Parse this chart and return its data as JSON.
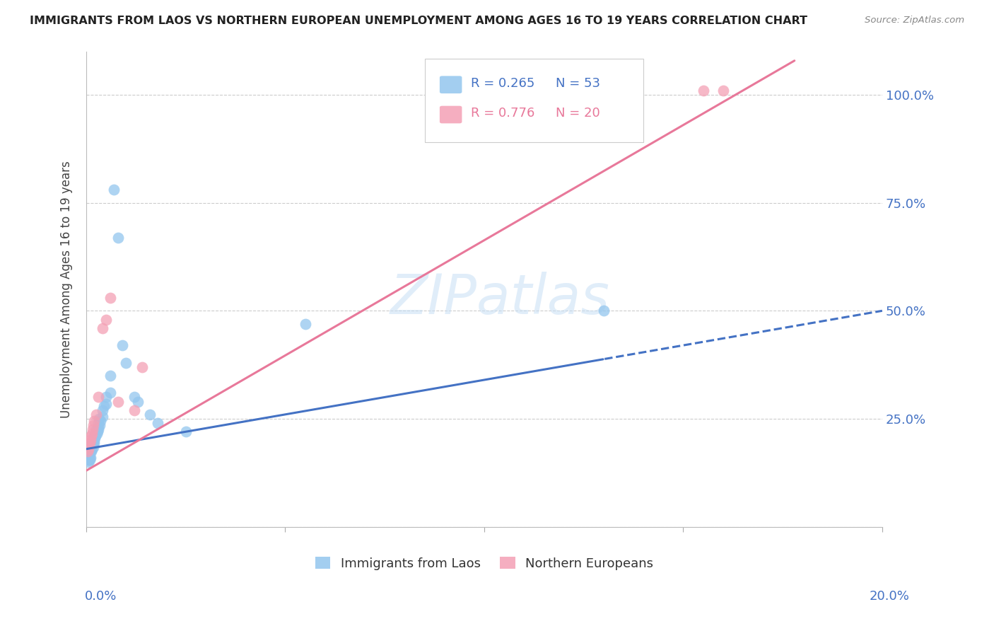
{
  "title": "IMMIGRANTS FROM LAOS VS NORTHERN EUROPEAN UNEMPLOYMENT AMONG AGES 16 TO 19 YEARS CORRELATION CHART",
  "source": "Source: ZipAtlas.com",
  "ylabel": "Unemployment Among Ages 16 to 19 years",
  "r_laos": 0.265,
  "n_laos": 53,
  "r_northern": 0.776,
  "n_northern": 20,
  "color_laos": "#93C6EE",
  "color_northern": "#F4A0B5",
  "color_laos_line": "#4472C4",
  "color_northern_line": "#E8789A",
  "watermark": "ZIPatlas",
  "laos_x": [
    0.0003,
    0.0004,
    0.0005,
    0.0005,
    0.0006,
    0.0006,
    0.0007,
    0.0007,
    0.0008,
    0.0009,
    0.001,
    0.001,
    0.001,
    0.0012,
    0.0013,
    0.0013,
    0.0014,
    0.0015,
    0.0016,
    0.0017,
    0.0018,
    0.002,
    0.002,
    0.002,
    0.0022,
    0.0023,
    0.0025,
    0.0026,
    0.0028,
    0.003,
    0.003,
    0.003,
    0.0032,
    0.0034,
    0.0036,
    0.004,
    0.004,
    0.0045,
    0.005,
    0.005,
    0.006,
    0.006,
    0.007,
    0.008,
    0.009,
    0.01,
    0.012,
    0.013,
    0.016,
    0.018,
    0.025,
    0.055,
    0.13
  ],
  "laos_y": [
    0.18,
    0.17,
    0.16,
    0.15,
    0.165,
    0.155,
    0.17,
    0.155,
    0.16,
    0.155,
    0.18,
    0.175,
    0.16,
    0.185,
    0.19,
    0.175,
    0.18,
    0.185,
    0.19,
    0.185,
    0.195,
    0.21,
    0.2,
    0.195,
    0.205,
    0.21,
    0.225,
    0.215,
    0.22,
    0.24,
    0.23,
    0.225,
    0.25,
    0.235,
    0.245,
    0.27,
    0.255,
    0.28,
    0.3,
    0.285,
    0.35,
    0.31,
    0.78,
    0.67,
    0.42,
    0.38,
    0.3,
    0.29,
    0.26,
    0.24,
    0.22,
    0.47,
    0.5
  ],
  "northern_x": [
    0.0003,
    0.0005,
    0.0006,
    0.0008,
    0.001,
    0.0012,
    0.0014,
    0.0016,
    0.0018,
    0.002,
    0.0025,
    0.003,
    0.004,
    0.005,
    0.006,
    0.008,
    0.012,
    0.014,
    0.155,
    0.16
  ],
  "northern_y": [
    0.175,
    0.18,
    0.19,
    0.195,
    0.2,
    0.21,
    0.215,
    0.225,
    0.235,
    0.245,
    0.26,
    0.3,
    0.46,
    0.48,
    0.53,
    0.29,
    0.27,
    0.37,
    1.01,
    1.01
  ],
  "yticks": [
    0.0,
    0.25,
    0.5,
    0.75,
    1.0
  ],
  "right_yticklabels": [
    "",
    "25.0%",
    "50.0%",
    "75.0%",
    "100.0%"
  ],
  "xlim": [
    0.0,
    0.2
  ],
  "ylim": [
    0.0,
    1.1
  ],
  "xtick_positions": [
    0.0,
    0.05,
    0.1,
    0.15,
    0.2
  ],
  "grid_color": "#CCCCCC",
  "background_color": "#FFFFFF",
  "laos_line_x0": 0.0,
  "laos_line_x_solid_end": 0.13,
  "laos_line_x1": 0.2,
  "northern_line_x0": 0.0,
  "northern_line_x1": 0.2
}
